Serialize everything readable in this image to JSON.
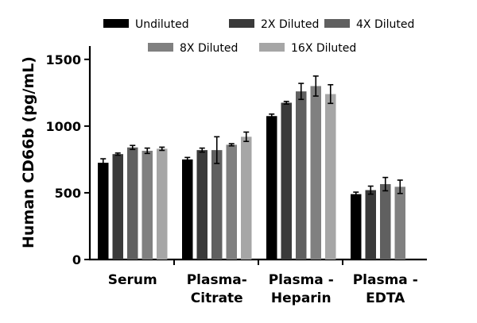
{
  "chart_data": {
    "type": "bar",
    "title": "",
    "xlabel": "",
    "ylabel": "Human CD66b (pg/mL)",
    "ylim": [
      0,
      1600
    ],
    "yticks": [
      0,
      500,
      1000,
      1500
    ],
    "grid": false,
    "legend_position": "top",
    "categories": [
      {
        "line1": "Serum",
        "line2": ""
      },
      {
        "line1": "Plasma-",
        "line2": "Citrate"
      },
      {
        "line1": "Plasma -",
        "line2": "Heparin"
      },
      {
        "line1": "Plasma -",
        "line2": "EDTA"
      }
    ],
    "series": [
      {
        "name": "Undiluted",
        "color": "#000000",
        "values": [
          725,
          750,
          1075,
          490
        ],
        "errors": [
          30,
          15,
          15,
          15
        ]
      },
      {
        "name": "2X Diluted",
        "color": "#3a3a3a",
        "values": [
          790,
          820,
          1175,
          520
        ],
        "errors": [
          8,
          15,
          10,
          30
        ]
      },
      {
        "name": "4X Diluted",
        "color": "#606060",
        "values": [
          840,
          820,
          1260,
          565
        ],
        "errors": [
          15,
          100,
          60,
          50
        ]
      },
      {
        "name": "8X Diluted",
        "color": "#808080",
        "values": [
          815,
          860,
          1300,
          545
        ],
        "errors": [
          20,
          8,
          75,
          50
        ]
      },
      {
        "name": "16X Diluted",
        "color": "#a6a6a6",
        "values": [
          830,
          920,
          1240,
          null
        ],
        "errors": [
          12,
          35,
          70,
          null
        ]
      }
    ]
  }
}
